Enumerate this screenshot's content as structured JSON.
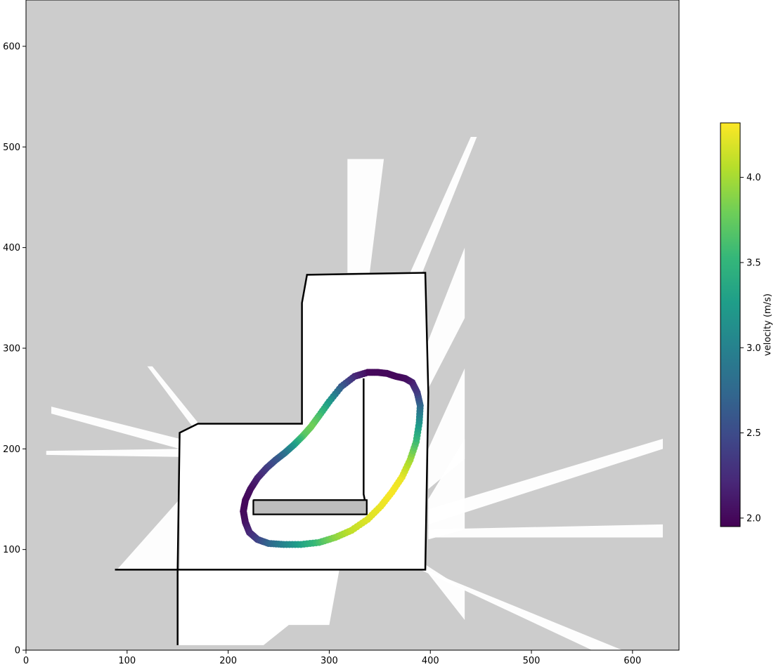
{
  "chart_data": {
    "type": "scatter",
    "title": "",
    "xlabel": "",
    "ylabel": "",
    "xlim": [
      0,
      646
    ],
    "ylim": [
      0,
      646
    ],
    "xticks": [
      0,
      100,
      200,
      300,
      400,
      500,
      600
    ],
    "yticks": [
      0,
      100,
      200,
      300,
      400,
      500,
      600
    ],
    "grid": false,
    "background": {
      "unknown_color": "#cccccc",
      "free_color": "#ffffff",
      "occupied_color": "#000000",
      "walls": [
        [
          [
            150,
            5
          ],
          [
            150,
            80
          ],
          [
            88,
            80
          ],
          [
            150,
            80
          ],
          [
            152,
            216
          ],
          [
            170,
            225
          ],
          [
            273,
            225
          ],
          [
            273,
            345
          ],
          [
            278,
            373
          ],
          [
            395,
            375
          ],
          [
            398,
            256
          ],
          [
            395,
            80
          ],
          [
            150,
            80
          ]
        ],
        [
          [
            225,
            149
          ],
          [
            337,
            149
          ],
          [
            337,
            135
          ],
          [
            225,
            135
          ],
          [
            225,
            149
          ]
        ],
        [
          [
            334,
            270
          ],
          [
            334,
            155
          ],
          [
            337,
            140
          ]
        ]
      ],
      "obstacle_rect": {
        "x": [
          225,
          337
        ],
        "y": [
          135,
          149
        ],
        "fill": "#bdbdbd"
      }
    },
    "colorbar": {
      "label": "velocity (m/s)",
      "colormap": "viridis",
      "colors": [
        "#440154",
        "#482878",
        "#3e4989",
        "#31688e",
        "#26828e",
        "#1f9e89",
        "#35b779",
        "#6ece58",
        "#b5de2b",
        "#fde725"
      ],
      "vmin": 1.95,
      "vmax": 4.32,
      "ticks": [
        2.0,
        2.5,
        3.0,
        3.5,
        4.0
      ],
      "tick_labels": [
        "2.0",
        "2.5",
        "3.0",
        "3.5",
        "4.0"
      ]
    },
    "series": [
      {
        "x": [
          338,
          325,
          312,
          300,
          290,
          282,
          274,
          265,
          256,
          247,
          238,
          229,
          222,
          217,
          215,
          217,
          221,
          229,
          240,
          255,
          272,
          290,
          306,
          322,
          338,
          351,
          362,
          372,
          380,
          386,
          389,
          390,
          387,
          382,
          375,
          366,
          357,
          348
        ],
        "y": [
          276,
          272,
          262,
          247,
          233,
          222,
          213,
          204,
          196,
          189,
          181,
          171,
          160,
          149,
          138,
          127,
          117,
          110,
          106,
          105,
          105,
          107,
          112,
          119,
          130,
          143,
          157,
          172,
          189,
          207,
          226,
          243,
          256,
          266,
          270,
          272,
          275,
          276
        ],
        "velocity": [
          2.0,
          2.2,
          2.6,
          3.2,
          3.6,
          3.8,
          3.7,
          3.3,
          2.9,
          2.6,
          2.4,
          2.2,
          2.05,
          2.0,
          2.0,
          2.05,
          2.2,
          2.4,
          2.7,
          3.0,
          3.3,
          3.6,
          3.9,
          4.1,
          4.2,
          4.25,
          4.3,
          4.25,
          4.0,
          3.6,
          3.2,
          2.8,
          2.4,
          2.2,
          2.05,
          2.0,
          2.0,
          2.0
        ]
      }
    ]
  }
}
